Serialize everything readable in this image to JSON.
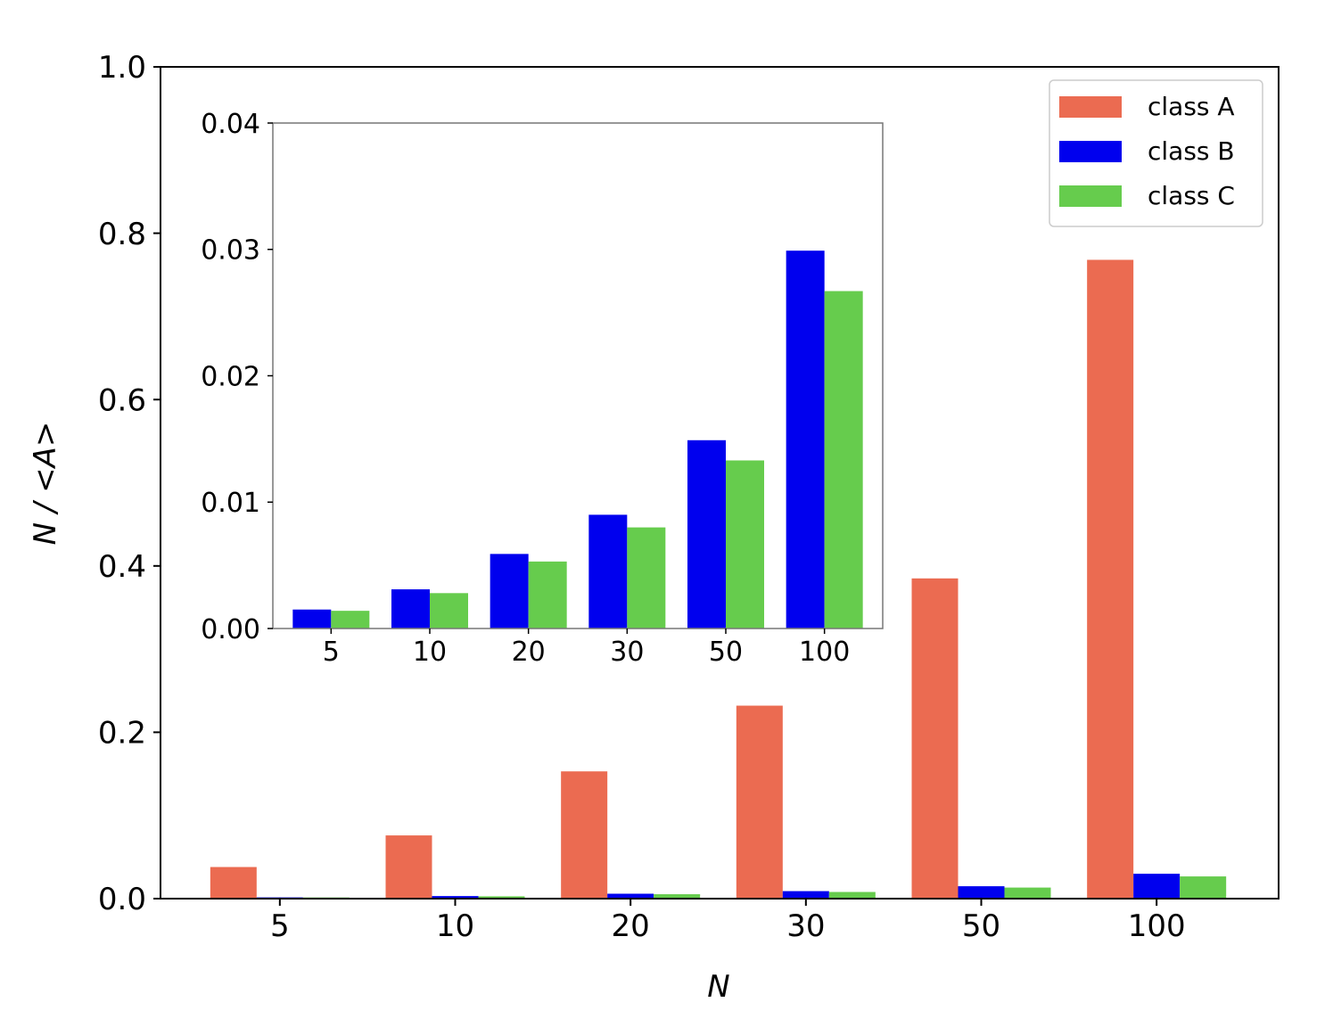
{
  "chart_data": [
    {
      "type": "bar",
      "title": "",
      "xlabel": "N",
      "ylabel": "N / <A>",
      "categories": [
        "5",
        "10",
        "20",
        "30",
        "50",
        "100"
      ],
      "ylim": [
        0,
        1.0
      ],
      "yticks": [
        "0.0",
        "0.2",
        "0.4",
        "0.6",
        "0.8",
        "1.0"
      ],
      "grid": false,
      "legend_position": "top-right",
      "series": [
        {
          "name": "class A",
          "color": "#eb6b51",
          "values": [
            0.038,
            0.076,
            0.153,
            0.232,
            0.385,
            0.768
          ]
        },
        {
          "name": "class B",
          "color": "#0000ee",
          "values": [
            0.0015,
            0.0031,
            0.0059,
            0.009,
            0.0149,
            0.0299
          ]
        },
        {
          "name": "class C",
          "color": "#66cc4d",
          "values": [
            0.0014,
            0.0028,
            0.0053,
            0.008,
            0.0133,
            0.0267
          ]
        }
      ]
    },
    {
      "type": "bar",
      "title": "",
      "role": "inset",
      "categories": [
        "5",
        "10",
        "20",
        "30",
        "50",
        "100"
      ],
      "ylim": [
        0,
        0.04
      ],
      "yticks": [
        "0.00",
        "0.01",
        "0.02",
        "0.03",
        "0.04"
      ],
      "grid": false,
      "series": [
        {
          "color": "#0000ee",
          "values": [
            0.0015,
            0.0031,
            0.0059,
            0.009,
            0.0149,
            0.0299
          ]
        },
        {
          "color": "#66cc4d",
          "values": [
            0.0014,
            0.0028,
            0.0053,
            0.008,
            0.0133,
            0.0267
          ]
        }
      ]
    }
  ]
}
